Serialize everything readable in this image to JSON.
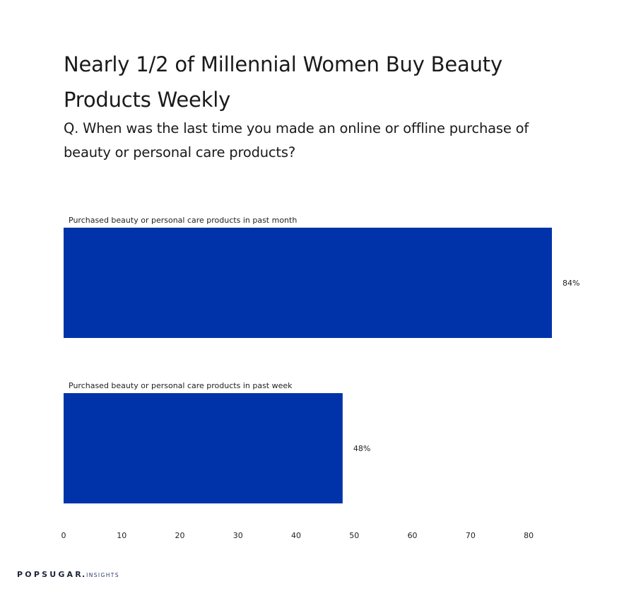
{
  "chart_data": {
    "type": "bar",
    "orientation": "horizontal",
    "title": "Nearly 1/2 of Millennial Women Buy Beauty Products Weekly",
    "subtitle": "Q. When was the last time you made an online or offline purchase of beauty or personal care products?",
    "categories": [
      "Purchased beauty or personal care products in past month",
      "Purchased beauty or personal care products in past week"
    ],
    "values": [
      84,
      48
    ],
    "value_labels": [
      "84%",
      "48%"
    ],
    "x_ticks": [
      0,
      10,
      20,
      30,
      40,
      50,
      60,
      70,
      80
    ],
    "xlim": [
      0,
      84
    ],
    "grid": false,
    "legend": "none",
    "bar_color": "#0033aa"
  },
  "brand": {
    "name": "POPSUGAR",
    "dot": ".",
    "suffix": "INSIGHTS"
  }
}
